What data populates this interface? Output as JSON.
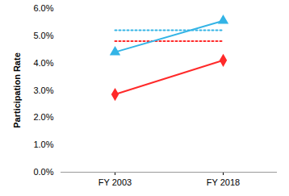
{
  "chart_data": {
    "type": "line",
    "y_label": "Participation Rate",
    "categories": [
      "FY 2003",
      "FY 2018"
    ],
    "series": [
      {
        "color": "#33b4e6",
        "values": [
          5.2,
          5.2
        ],
        "line_style": "dotted",
        "marker": "none"
      },
      {
        "color": "#ff2a2a",
        "values": [
          4.8,
          4.8
        ],
        "line_style": "dotted",
        "marker": "none"
      },
      {
        "color": "#33b4e6",
        "values": [
          4.4,
          5.55
        ],
        "line_style": "solid",
        "marker": "triangle"
      },
      {
        "color": "#ff2a2a",
        "values": [
          2.85,
          4.1
        ],
        "line_style": "solid",
        "marker": "diamond"
      }
    ],
    "ylim": [
      0,
      6
    ],
    "yticks": [
      {
        "value": 0,
        "label": "0.0%"
      },
      {
        "value": 1,
        "label": "1.0%"
      },
      {
        "value": 2,
        "label": "2.0%"
      },
      {
        "value": 3,
        "label": "3.0%"
      },
      {
        "value": 4,
        "label": "4.0%"
      },
      {
        "value": 5,
        "label": "5.0%"
      },
      {
        "value": 6,
        "label": "6.0%"
      }
    ],
    "grid": false
  }
}
